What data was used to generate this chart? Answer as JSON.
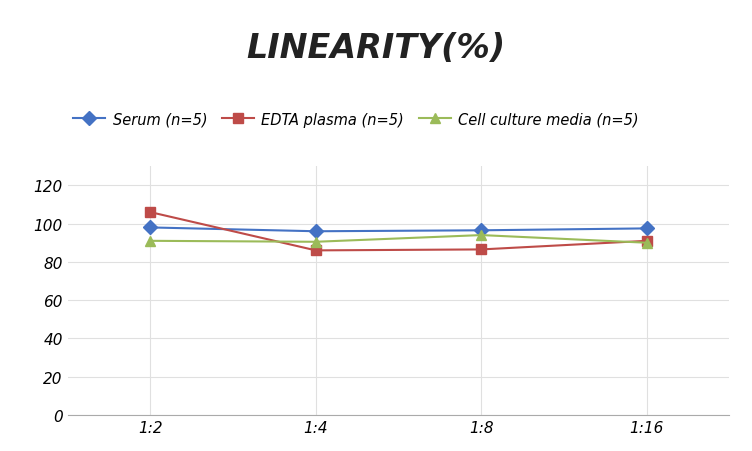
{
  "title": "LINEARITY(%)",
  "title_fontsize": 24,
  "title_style": "italic",
  "title_weight": "bold",
  "x_labels": [
    "1:2",
    "1:4",
    "1:8",
    "1:16"
  ],
  "x_positions": [
    0,
    1,
    2,
    3
  ],
  "serum": [
    98,
    96,
    96.5,
    97.5
  ],
  "edta": [
    106,
    86,
    86.5,
    91
  ],
  "cell": [
    91,
    90.5,
    94,
    90
  ],
  "serum_color": "#4472C4",
  "edta_color": "#BE4B48",
  "cell_color": "#9BBB59",
  "serum_label": "Serum (n=5)",
  "edta_label": "EDTA plasma (n=5)",
  "cell_label": "Cell culture media (n=5)",
  "ylim": [
    0,
    130
  ],
  "yticks": [
    0,
    20,
    40,
    60,
    80,
    100,
    120
  ],
  "grid_color": "#E0E0E0",
  "background_color": "#FFFFFF",
  "linewidth": 1.5,
  "markersize": 7,
  "legend_fontsize": 10.5,
  "tick_fontsize": 11
}
